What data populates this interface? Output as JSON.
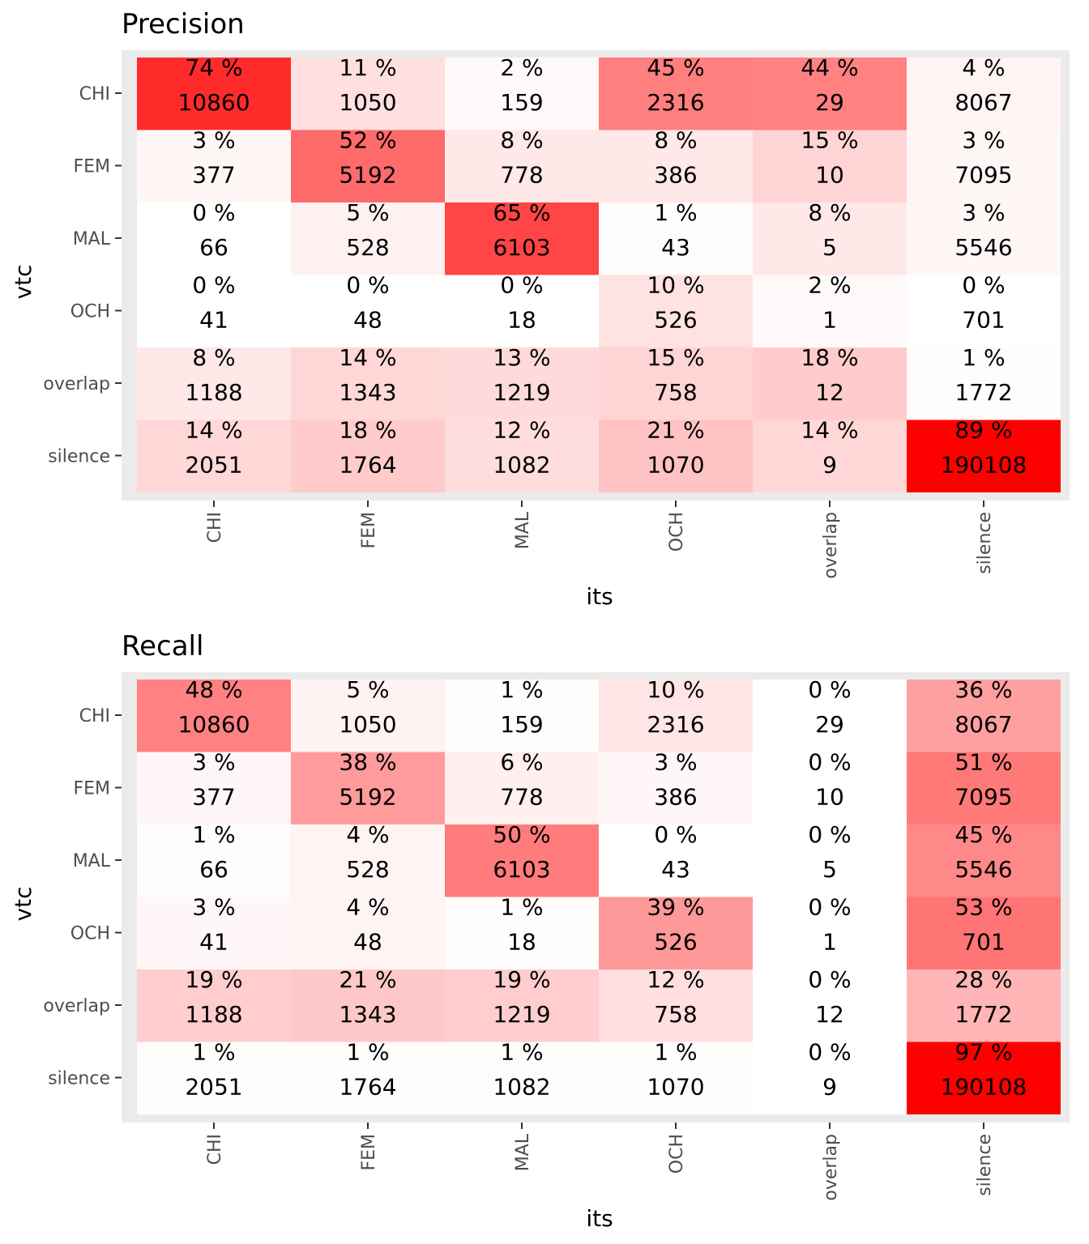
{
  "chart_data": [
    {
      "type": "heatmap",
      "title": "Precision",
      "xlabel": "its",
      "ylabel": "vtc",
      "x_categories": [
        "CHI",
        "FEM",
        "MAL",
        "OCH",
        "overlap",
        "silence"
      ],
      "y_categories": [
        "CHI",
        "FEM",
        "MAL",
        "OCH",
        "overlap",
        "silence"
      ],
      "fill_low": "#ffffff",
      "fill_high": "#ff0000",
      "percent": [
        [
          "74 %",
          "11 %",
          "2 %",
          "45 %",
          "44 %",
          "4 %"
        ],
        [
          "3 %",
          "52 %",
          "8 %",
          "8 %",
          "15 %",
          "3 %"
        ],
        [
          "0 %",
          "5 %",
          "65 %",
          "1 %",
          "8 %",
          "3 %"
        ],
        [
          "0 %",
          "0 %",
          "0 %",
          "10 %",
          "2 %",
          "0 %"
        ],
        [
          "8 %",
          "14 %",
          "13 %",
          "15 %",
          "18 %",
          "1 %"
        ],
        [
          "14 %",
          "18 %",
          "12 %",
          "21 %",
          "14 %",
          "89 %"
        ]
      ],
      "percent_values": [
        [
          74,
          11,
          2,
          45,
          44,
          4
        ],
        [
          3,
          52,
          8,
          8,
          15,
          3
        ],
        [
          0,
          5,
          65,
          1,
          8,
          3
        ],
        [
          0,
          0,
          0,
          10,
          2,
          0
        ],
        [
          8,
          14,
          13,
          15,
          18,
          1
        ],
        [
          14,
          18,
          12,
          21,
          14,
          89
        ]
      ],
      "counts": [
        [
          "10860",
          "1050",
          "159",
          "2316",
          "29",
          "8067"
        ],
        [
          "377",
          "5192",
          "778",
          "386",
          "10",
          "7095"
        ],
        [
          "66",
          "528",
          "6103",
          "43",
          "5",
          "5546"
        ],
        [
          "41",
          "48",
          "18",
          "526",
          "1",
          "701"
        ],
        [
          "1188",
          "1343",
          "1219",
          "758",
          "12",
          "1772"
        ],
        [
          "2051",
          "1764",
          "1082",
          "1070",
          "9",
          "190108"
        ]
      ]
    },
    {
      "type": "heatmap",
      "title": "Recall",
      "xlabel": "its",
      "ylabel": "vtc",
      "x_categories": [
        "CHI",
        "FEM",
        "MAL",
        "OCH",
        "overlap",
        "silence"
      ],
      "y_categories": [
        "CHI",
        "FEM",
        "MAL",
        "OCH",
        "overlap",
        "silence"
      ],
      "fill_low": "#ffffff",
      "fill_high": "#ff0000",
      "percent": [
        [
          "48 %",
          "5 %",
          "1 %",
          "10 %",
          "0 %",
          "36 %"
        ],
        [
          "3 %",
          "38 %",
          "6 %",
          "3 %",
          "0 %",
          "51 %"
        ],
        [
          "1 %",
          "4 %",
          "50 %",
          "0 %",
          "0 %",
          "45 %"
        ],
        [
          "3 %",
          "4 %",
          "1 %",
          "39 %",
          "0 %",
          "53 %"
        ],
        [
          "19 %",
          "21 %",
          "19 %",
          "12 %",
          "0 %",
          "28 %"
        ],
        [
          "1 %",
          "1 %",
          "1 %",
          "1 %",
          "0 %",
          "97 %"
        ]
      ],
      "percent_values": [
        [
          48,
          5,
          1,
          10,
          0,
          36
        ],
        [
          3,
          38,
          6,
          3,
          0,
          51
        ],
        [
          1,
          4,
          50,
          0,
          0,
          45
        ],
        [
          3,
          4,
          1,
          39,
          0,
          53
        ],
        [
          19,
          21,
          19,
          12,
          0,
          28
        ],
        [
          1,
          1,
          1,
          1,
          0,
          97
        ]
      ],
      "counts": [
        [
          "10860",
          "1050",
          "159",
          "2316",
          "29",
          "8067"
        ],
        [
          "377",
          "5192",
          "778",
          "386",
          "10",
          "7095"
        ],
        [
          "66",
          "528",
          "6103",
          "43",
          "5",
          "5546"
        ],
        [
          "41",
          "48",
          "18",
          "526",
          "1",
          "701"
        ],
        [
          "1188",
          "1343",
          "1219",
          "758",
          "12",
          "1772"
        ],
        [
          "2051",
          "1764",
          "1082",
          "1070",
          "9",
          "190108"
        ]
      ]
    }
  ]
}
